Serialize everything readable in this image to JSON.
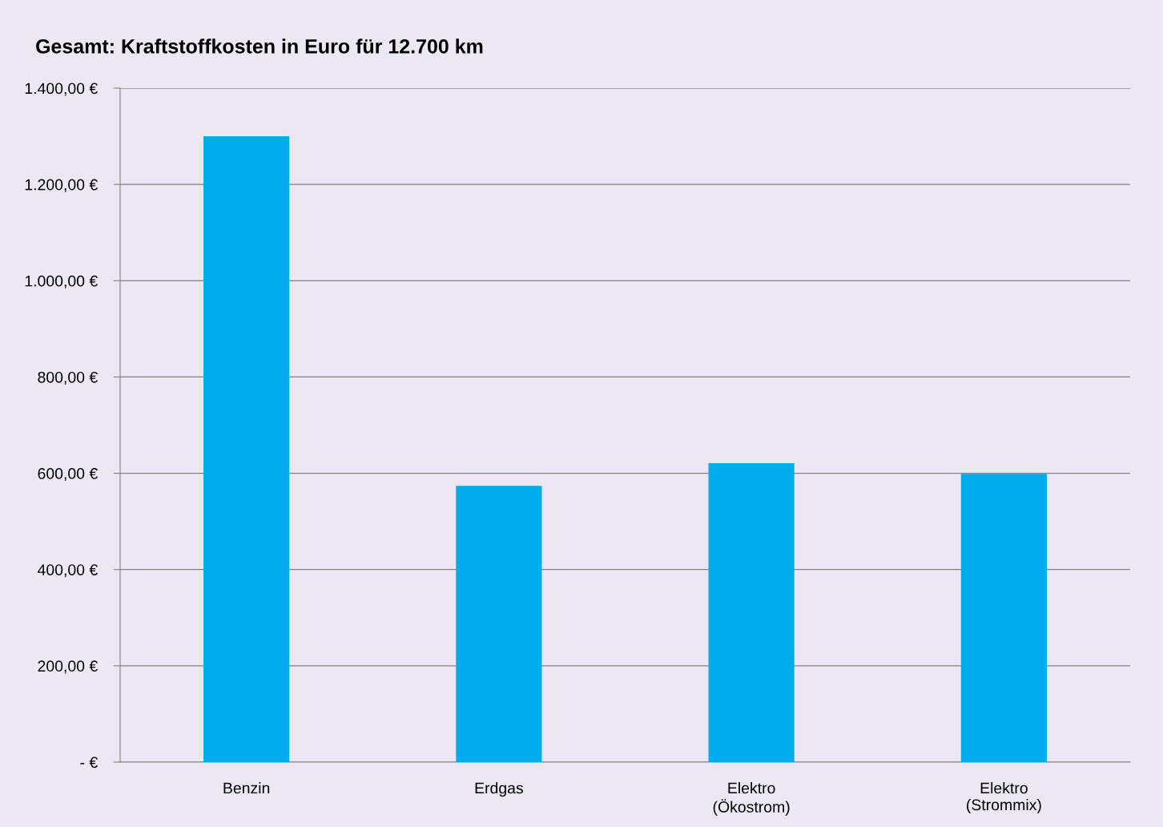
{
  "chart_data": {
    "type": "bar",
    "title": "Gesamt: Kraftstoffkosten in Euro für 12.700 km",
    "categories": [
      "Benzin",
      "Erdgas",
      "Elektro\n(Ökostrom)",
      "Elektro\n(Strommix)"
    ],
    "values": [
      1300,
      574,
      621,
      599
    ],
    "color": "#00adec",
    "ylim": [
      0,
      1400
    ],
    "yticks": [
      {
        "value": 0,
        "label": "- €"
      },
      {
        "value": 200,
        "label": "200,00 €"
      },
      {
        "value": 400,
        "label": "400,00 €"
      },
      {
        "value": 600,
        "label": "600,00 €"
      },
      {
        "value": 800,
        "label": "800,00 €"
      },
      {
        "value": 1000,
        "label": "1.000,00 €"
      },
      {
        "value": 1200,
        "label": "1.200,00 €"
      },
      {
        "value": 1400,
        "label": "1.400,00 €"
      }
    ],
    "grid": "y",
    "legend": false
  }
}
